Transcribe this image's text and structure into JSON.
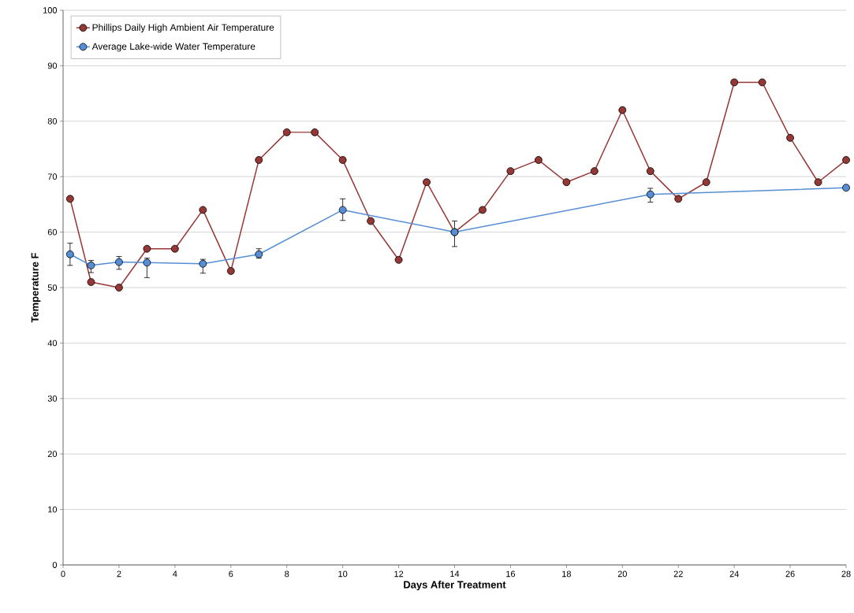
{
  "chart_data": {
    "type": "line",
    "xlabel": "Days After  Treatment",
    "ylabel": "Temperature   F",
    "xlim": [
      0,
      28
    ],
    "ylim": [
      0,
      100
    ],
    "xticks": [
      0,
      2,
      4,
      6,
      8,
      10,
      12,
      14,
      16,
      18,
      20,
      22,
      24,
      26,
      28
    ],
    "yticks": [
      0,
      10,
      20,
      30,
      40,
      50,
      60,
      70,
      80,
      90,
      100
    ],
    "grid": "y",
    "legend": "top left",
    "marker": "circle",
    "line_style": "solid",
    "series": [
      {
        "name": "Phillips Daily High Ambient Air Temperature",
        "color": "#953735",
        "x": [
          0.25,
          1,
          2,
          3,
          4,
          5,
          6,
          7,
          8,
          9,
          10,
          11,
          12,
          13,
          14,
          15,
          16,
          17,
          18,
          19,
          20,
          21,
          22,
          23,
          24,
          25,
          26,
          27,
          28
        ],
        "values": [
          66,
          51,
          50,
          57,
          57,
          64,
          53,
          73,
          78,
          78,
          73,
          62,
          55,
          69,
          60,
          64,
          71,
          73,
          69,
          71,
          82,
          71,
          66,
          69,
          87,
          87,
          77,
          69,
          73
        ]
      },
      {
        "name": "Average Lake-wide Water Temperature",
        "color": "#558ed5",
        "x": [
          0.25,
          1,
          2,
          3,
          5,
          7,
          10,
          14,
          21,
          28
        ],
        "values": [
          56,
          54,
          54.6,
          54.5,
          54.3,
          56,
          64,
          60,
          66.8,
          68
        ],
        "errors": [
          [
            54,
            58
          ],
          [
            52.7,
            54.9
          ],
          [
            53.3,
            55.6
          ],
          [
            51.8,
            55.3
          ],
          [
            52.6,
            55.1
          ],
          [
            55.3,
            57
          ],
          [
            62.1,
            66
          ],
          [
            57.4,
            62
          ],
          [
            65.4,
            67.9
          ],
          null
        ]
      }
    ]
  }
}
